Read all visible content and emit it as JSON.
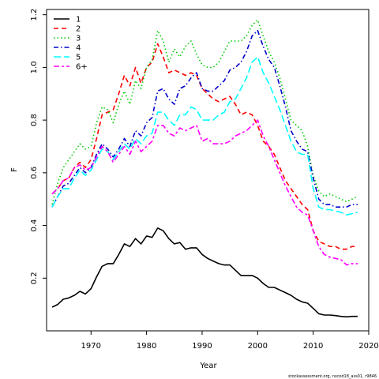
{
  "chart_data": {
    "type": "line",
    "title": "",
    "xlabel": "Year",
    "ylabel": "F",
    "xlim": [
      1962,
      2020
    ],
    "ylim": [
      0,
      1.22
    ],
    "x_ticks": [
      1970,
      1980,
      1990,
      2000,
      2010,
      2020
    ],
    "y_ticks": [
      0.2,
      0.4,
      0.6,
      0.8,
      1.0,
      1.2
    ],
    "x_tick_labels": [
      "1970",
      "1980",
      "1990",
      "2000",
      "2010",
      "2020"
    ],
    "y_tick_labels": [
      "0.2",
      "0.4",
      "0.6",
      "0.8",
      "1.0",
      "1.2"
    ],
    "grid": false,
    "legend_position": "top-left",
    "x": [
      1963,
      1964,
      1965,
      1966,
      1967,
      1968,
      1969,
      1970,
      1971,
      1972,
      1973,
      1974,
      1975,
      1976,
      1977,
      1978,
      1979,
      1980,
      1981,
      1982,
      1983,
      1984,
      1985,
      1986,
      1987,
      1988,
      1989,
      1990,
      1991,
      1992,
      1993,
      1994,
      1995,
      1996,
      1997,
      1998,
      1999,
      2000,
      2001,
      2002,
      2003,
      2004,
      2005,
      2006,
      2007,
      2008,
      2009,
      2010,
      2011,
      2012,
      2013,
      2014,
      2015,
      2016,
      2017,
      2018
    ],
    "series": [
      {
        "name": "1",
        "color": "#000000",
        "dash": "solid",
        "values": [
          0.09,
          0.1,
          0.12,
          0.125,
          0.135,
          0.15,
          0.14,
          0.16,
          0.205,
          0.245,
          0.255,
          0.255,
          0.29,
          0.33,
          0.32,
          0.35,
          0.33,
          0.36,
          0.355,
          0.39,
          0.38,
          0.35,
          0.33,
          0.335,
          0.31,
          0.315,
          0.315,
          0.29,
          0.275,
          0.265,
          0.255,
          0.25,
          0.25,
          0.23,
          0.21,
          0.21,
          0.21,
          0.2,
          0.18,
          0.165,
          0.165,
          0.155,
          0.145,
          0.135,
          0.12,
          0.11,
          0.105,
          0.085,
          0.065,
          0.06,
          0.06,
          0.058,
          0.055,
          0.053,
          0.055,
          0.055
        ]
      },
      {
        "name": "2",
        "color": "#ff0000",
        "dash": "dashed",
        "values": [
          0.52,
          0.54,
          0.57,
          0.58,
          0.62,
          0.64,
          0.62,
          0.65,
          0.73,
          0.82,
          0.83,
          0.84,
          0.9,
          0.97,
          0.93,
          1.0,
          0.94,
          1.0,
          1.02,
          1.09,
          1.04,
          0.98,
          0.99,
          0.98,
          0.97,
          0.98,
          0.97,
          0.92,
          0.9,
          0.88,
          0.87,
          0.88,
          0.89,
          0.86,
          0.82,
          0.83,
          0.82,
          0.78,
          0.72,
          0.7,
          0.67,
          0.62,
          0.57,
          0.54,
          0.51,
          0.48,
          0.46,
          0.38,
          0.34,
          0.33,
          0.32,
          0.32,
          0.31,
          0.31,
          0.32,
          0.32
        ]
      },
      {
        "name": "3",
        "color": "#00cc00",
        "dash": "dotted",
        "values": [
          0.48,
          0.56,
          0.62,
          0.65,
          0.68,
          0.71,
          0.69,
          0.7,
          0.79,
          0.85,
          0.84,
          0.79,
          0.86,
          0.91,
          0.86,
          0.95,
          0.92,
          1.0,
          1.03,
          1.14,
          1.1,
          1.02,
          1.07,
          1.04,
          1.08,
          1.1,
          1.05,
          1.01,
          1.0,
          1.0,
          1.02,
          1.06,
          1.1,
          1.1,
          1.1,
          1.12,
          1.16,
          1.18,
          1.12,
          1.06,
          1.02,
          0.96,
          0.88,
          0.8,
          0.78,
          0.76,
          0.7,
          0.59,
          0.53,
          0.51,
          0.52,
          0.51,
          0.5,
          0.49,
          0.5,
          0.51
        ]
      },
      {
        "name": "4",
        "color": "#0000cc",
        "dash": "dashdot",
        "values": [
          0.47,
          0.51,
          0.55,
          0.56,
          0.59,
          0.62,
          0.6,
          0.62,
          0.67,
          0.71,
          0.69,
          0.66,
          0.69,
          0.73,
          0.7,
          0.76,
          0.74,
          0.79,
          0.81,
          0.91,
          0.92,
          0.88,
          0.86,
          0.92,
          0.93,
          0.96,
          0.98,
          0.92,
          0.91,
          0.91,
          0.93,
          0.95,
          0.99,
          1.0,
          1.02,
          1.06,
          1.12,
          1.14,
          1.08,
          1.03,
          1.0,
          0.93,
          0.85,
          0.76,
          0.72,
          0.69,
          0.68,
          0.58,
          0.5,
          0.48,
          0.48,
          0.47,
          0.47,
          0.47,
          0.48,
          0.48
        ]
      },
      {
        "name": "5",
        "color": "#00ffff",
        "dash": "longdash",
        "values": [
          0.47,
          0.51,
          0.54,
          0.54,
          0.58,
          0.61,
          0.59,
          0.61,
          0.65,
          0.69,
          0.68,
          0.65,
          0.68,
          0.71,
          0.69,
          0.73,
          0.71,
          0.74,
          0.75,
          0.83,
          0.83,
          0.8,
          0.78,
          0.82,
          0.82,
          0.85,
          0.84,
          0.8,
          0.8,
          0.8,
          0.82,
          0.83,
          0.87,
          0.88,
          0.92,
          0.96,
          1.02,
          1.04,
          0.98,
          0.94,
          0.89,
          0.84,
          0.78,
          0.72,
          0.68,
          0.67,
          0.67,
          0.54,
          0.47,
          0.46,
          0.46,
          0.455,
          0.45,
          0.44,
          0.445,
          0.45
        ]
      },
      {
        "name": "6+",
        "color": "#ff00ff",
        "dash": "twodash",
        "values": [
          0.52,
          0.54,
          0.57,
          0.58,
          0.62,
          0.63,
          0.61,
          0.62,
          0.66,
          0.7,
          0.68,
          0.64,
          0.67,
          0.7,
          0.67,
          0.72,
          0.68,
          0.7,
          0.72,
          0.78,
          0.78,
          0.75,
          0.74,
          0.77,
          0.76,
          0.77,
          0.78,
          0.72,
          0.73,
          0.71,
          0.71,
          0.71,
          0.72,
          0.74,
          0.75,
          0.76,
          0.78,
          0.8,
          0.74,
          0.7,
          0.65,
          0.6,
          0.55,
          0.51,
          0.47,
          0.45,
          0.44,
          0.38,
          0.32,
          0.29,
          0.28,
          0.275,
          0.27,
          0.25,
          0.255,
          0.255
        ]
      }
    ]
  },
  "footer_text": "stockassessment.org, nscod18_ass01, r9846"
}
